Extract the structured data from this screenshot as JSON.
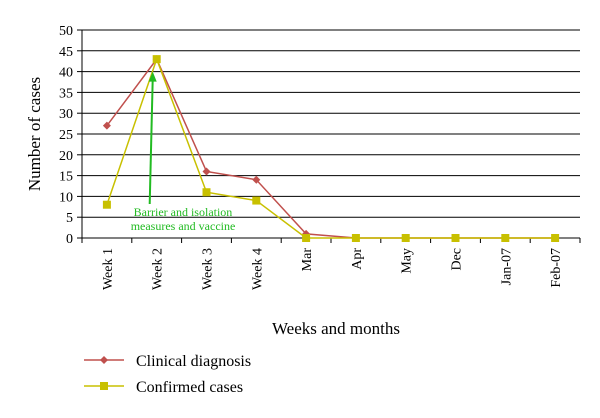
{
  "chart_data": {
    "type": "line",
    "title": "",
    "xlabel": "Weeks and months",
    "ylabel": "Number of cases",
    "ylim": [
      0,
      50
    ],
    "yticks": [
      "0",
      "5",
      "10",
      "15",
      "20",
      "25",
      "30",
      "35",
      "40",
      "45",
      "50"
    ],
    "grid": true,
    "categories": [
      "Week 1",
      "Week 2",
      "Week 3",
      "Week 4",
      "Mar",
      "Apr",
      "May",
      "Dec",
      "Jan-07",
      "Feb-07"
    ],
    "series": [
      {
        "name": "Clinical diagnosis",
        "color": "#c0504d",
        "marker": "diamond",
        "values": [
          27,
          43,
          16,
          14,
          1,
          0,
          0,
          0,
          0,
          0
        ]
      },
      {
        "name": "Confirmed cases",
        "color": "#c8c000",
        "marker": "square",
        "values": [
          8,
          43,
          11,
          9,
          0,
          0,
          0,
          0,
          0,
          0
        ]
      }
    ],
    "annotation": {
      "lines": [
        "Barrier and isolation",
        "measures and vaccine"
      ],
      "color": "#22bb22",
      "category_index": 1,
      "value": 40
    }
  }
}
